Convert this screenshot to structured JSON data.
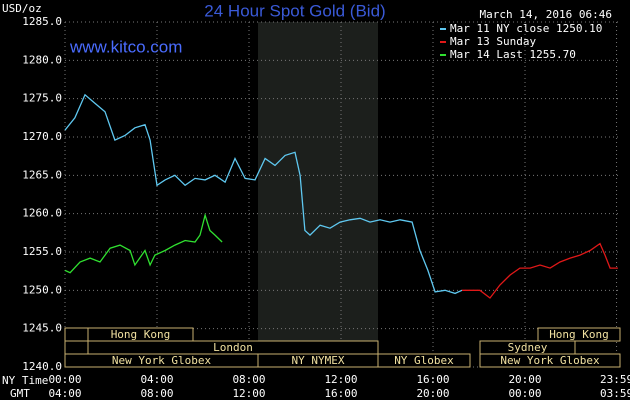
{
  "chart_data": {
    "type": "line",
    "title": "24 Hour Spot Gold (Bid)",
    "site": "www.kitco.com",
    "y_label": "USD/oz",
    "timestamp": "March 14, 2016 06:46",
    "x_label": "NY Time",
    "x2_label": "GMT",
    "xlim": [
      0,
      24.13
    ],
    "ylim": [
      1240,
      1285
    ],
    "grid": true,
    "yticks": [
      {
        "value": 1240,
        "label": "1240.0"
      },
      {
        "value": 1245,
        "label": "1245.0"
      },
      {
        "value": 1250,
        "label": "1250.0"
      },
      {
        "value": 1255,
        "label": "1255.0"
      },
      {
        "value": 1260,
        "label": "1260.0"
      },
      {
        "value": 1265,
        "label": "1265.0"
      },
      {
        "value": 1270,
        "label": "1270.0"
      },
      {
        "value": 1275,
        "label": "1275.0"
      },
      {
        "value": 1280,
        "label": "1280.0"
      },
      {
        "value": 1285,
        "label": "1285.0"
      }
    ],
    "xticks": [
      {
        "value": 0,
        "label": "00:00"
      },
      {
        "value": 4,
        "label": "04:00"
      },
      {
        "value": 8,
        "label": "08:00"
      },
      {
        "value": 12,
        "label": "12:00"
      },
      {
        "value": 16,
        "label": "16:00"
      },
      {
        "value": 20,
        "label": "20:00"
      },
      {
        "value": 23.98,
        "label": "23:59"
      }
    ],
    "x2tick_labels": [
      "04:00",
      "08:00",
      "12:00",
      "16:00",
      "20:00",
      "00:00",
      "03:59"
    ],
    "sessions": [
      "Hong Kong",
      "Hong Kong",
      "London",
      "Sydney",
      "New York Globex",
      "NY NYMEX",
      "NY Globex",
      "New York Globex"
    ],
    "series": [
      {
        "name": "Mar 11 NY close 1250.10",
        "color": "#5fc8f0",
        "x": [
          0,
          0.43,
          0.87,
          1.3,
          1.74,
          2.17,
          2.61,
          3.04,
          3.48,
          3.7,
          4.0,
          4.35,
          4.78,
          5.22,
          5.65,
          6.09,
          6.52,
          6.96,
          7.39,
          7.83,
          8.26,
          8.7,
          9.13,
          9.57,
          10.0,
          10.22,
          10.43,
          10.65,
          11.09,
          11.52,
          11.96,
          12.39,
          12.83,
          13.26,
          13.7,
          14.13,
          14.57,
          15.09,
          15.43,
          15.78,
          16.09,
          16.52,
          16.96,
          17.26
        ],
        "values": [
          1270.9,
          1272.5,
          1275.5,
          1274.4,
          1273.3,
          1269.6,
          1270.2,
          1271.2,
          1271.6,
          1269.6,
          1263.7,
          1264.4,
          1265.0,
          1263.7,
          1264.6,
          1264.4,
          1265.0,
          1264.1,
          1267.2,
          1264.6,
          1264.4,
          1267.2,
          1266.3,
          1267.6,
          1268.0,
          1265.0,
          1257.8,
          1257.2,
          1258.5,
          1258.1,
          1258.9,
          1259.2,
          1259.4,
          1258.9,
          1259.2,
          1258.9,
          1259.2,
          1258.9,
          1255.2,
          1252.6,
          1249.8,
          1250.0,
          1249.6,
          1250.0
        ]
      },
      {
        "name": "Mar 13 Sunday",
        "color": "#e01818",
        "x": [
          17.26,
          17.61,
          18.04,
          18.48,
          18.91,
          19.35,
          19.78,
          20.22,
          20.65,
          21.09,
          21.52,
          21.96,
          22.39,
          22.83,
          23.26,
          23.48,
          23.7,
          24.04
        ],
        "values": [
          1250.0,
          1250.0,
          1250.0,
          1249.0,
          1250.7,
          1252.0,
          1252.9,
          1252.9,
          1253.3,
          1252.9,
          1253.7,
          1254.2,
          1254.6,
          1255.2,
          1256.1,
          1254.6,
          1252.9,
          1252.9
        ]
      },
      {
        "name": "Mar 14 Last 1255.70",
        "color": "#30e030",
        "x": [
          0,
          0.22,
          0.65,
          1.09,
          1.52,
          1.96,
          2.39,
          2.83,
          3.04,
          3.48,
          3.7,
          3.91,
          4.35,
          4.78,
          5.22,
          5.65,
          5.87,
          6.09,
          6.3,
          6.52,
          6.83
        ],
        "values": [
          1252.6,
          1252.3,
          1253.7,
          1254.2,
          1253.7,
          1255.5,
          1255.9,
          1255.2,
          1253.3,
          1255.2,
          1253.3,
          1254.6,
          1255.2,
          1255.9,
          1256.5,
          1256.3,
          1257.2,
          1259.8,
          1257.8,
          1257.2,
          1256.3
        ]
      }
    ]
  }
}
